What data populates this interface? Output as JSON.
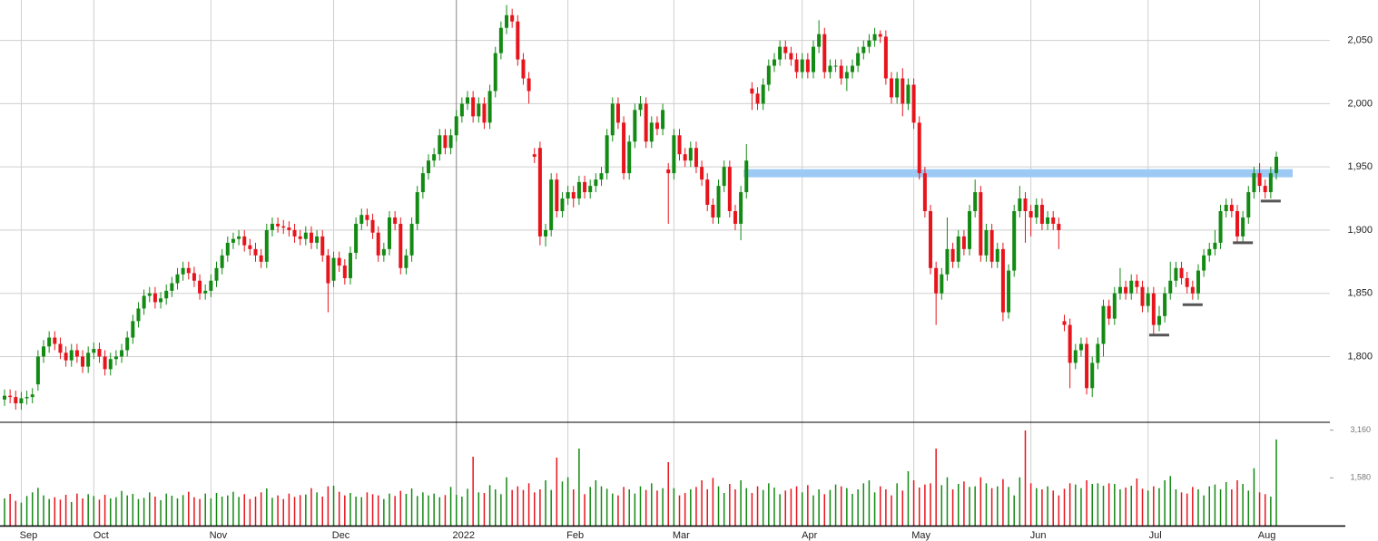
{
  "chart_data": {
    "type": "candlestick",
    "categories": [
      null,
      null,
      null,
      "Sep",
      null,
      null,
      null,
      null,
      null,
      null,
      null,
      null,
      null,
      null,
      null,
      null,
      "Oct",
      null,
      null,
      null,
      null,
      null,
      null,
      null,
      null,
      null,
      null,
      null,
      null,
      null,
      null,
      null,
      null,
      null,
      null,
      null,
      null,
      "Nov",
      null,
      null,
      null,
      null,
      null,
      null,
      null,
      null,
      null,
      null,
      null,
      null,
      null,
      null,
      null,
      null,
      null,
      null,
      null,
      null,
      null,
      "Dec",
      null,
      null,
      null,
      null,
      null,
      null,
      null,
      null,
      null,
      null,
      null,
      null,
      null,
      null,
      null,
      null,
      null,
      null,
      null,
      null,
      null,
      "2022",
      null,
      null,
      null,
      null,
      null,
      null,
      null,
      null,
      null,
      null,
      null,
      null,
      null,
      null,
      null,
      null,
      null,
      null,
      null,
      "Feb",
      null,
      null,
      null,
      null,
      null,
      null,
      null,
      null,
      null,
      null,
      null,
      null,
      null,
      null,
      null,
      null,
      null,
      null,
      "Mar",
      null,
      null,
      null,
      null,
      null,
      null,
      null,
      null,
      null,
      null,
      null,
      null,
      null,
      null,
      null,
      null,
      null,
      null,
      null,
      null,
      null,
      null,
      "Apr",
      null,
      null,
      null,
      null,
      null,
      null,
      null,
      null,
      null,
      null,
      null,
      null,
      null,
      null,
      null,
      null,
      null,
      null,
      null,
      "May",
      null,
      null,
      null,
      null,
      null,
      null,
      null,
      null,
      null,
      null,
      null,
      null,
      null,
      null,
      null,
      null,
      null,
      null,
      null,
      null,
      "Jun",
      null,
      null,
      null,
      null,
      null,
      null,
      null,
      null,
      null,
      null,
      null,
      null,
      null,
      null,
      null,
      null,
      null,
      null,
      null,
      null,
      "Jul",
      null,
      null,
      null,
      null,
      null,
      null,
      null,
      null,
      null,
      null,
      null,
      null,
      null,
      null,
      null,
      null,
      null,
      null,
      null,
      "Aug",
      null,
      null,
      null
    ],
    "open": [
      1766,
      1769,
      1768,
      1763,
      1767,
      1768,
      1778,
      1800,
      1808,
      1815,
      1810,
      1803,
      1797,
      1805,
      1800,
      1792,
      1803,
      1806,
      1800,
      1790,
      1798,
      1800,
      1805,
      1815,
      1828,
      1838,
      1848,
      1850,
      1843,
      1846,
      1852,
      1858,
      1865,
      1870,
      1866,
      1860,
      1850,
      1852,
      1860,
      1870,
      1880,
      1890,
      1893,
      1895,
      1888,
      1885,
      1880,
      1875,
      1900,
      1905,
      1903,
      1902,
      1900,
      1895,
      1893,
      1898,
      1890,
      1895,
      1880,
      1860,
      1878,
      1872,
      1862,
      1882,
      1905,
      1912,
      1908,
      1898,
      1880,
      1885,
      1910,
      1905,
      1870,
      1880,
      1905,
      1930,
      1945,
      1955,
      1960,
      1975,
      1965,
      1975,
      1990,
      2000,
      2005,
      1990,
      2000,
      1985,
      2010,
      2040,
      2060,
      2070,
      2065,
      2035,
      2020,
      1960,
      1965,
      1895,
      1900,
      1940,
      1915,
      1925,
      1930,
      1925,
      1938,
      1930,
      1935,
      1940,
      1945,
      1975,
      2000,
      1985,
      1945,
      1970,
      1995,
      2000,
      1970,
      1985,
      1980,
      1948,
      1945,
      1975,
      1960,
      1955,
      1965,
      1950,
      1940,
      1920,
      1910,
      1935,
      1950,
      1915,
      1905,
      1930,
      2012,
      2008,
      2000,
      2015,
      2030,
      2035,
      2045,
      2040,
      2035,
      2025,
      2035,
      2025,
      2045,
      2055,
      2025,
      2030,
      2030,
      2020,
      2025,
      2030,
      2040,
      2045,
      2050,
      2055,
      2053,
      2020,
      2005,
      2020,
      2000,
      2015,
      1985,
      1945,
      1915,
      1870,
      1850,
      1865,
      1885,
      1875,
      1895,
      1885,
      1915,
      1930,
      1880,
      1900,
      1875,
      1885,
      1835,
      1868,
      1915,
      1925,
      1915,
      1910,
      1920,
      1905,
      1910,
      1905,
      1828,
      1825,
      1795,
      1805,
      1810,
      1775,
      1795,
      1810,
      1840,
      1830,
      1850,
      1855,
      1850,
      1860,
      1855,
      1840,
      1850,
      1825,
      1832,
      1850,
      1860,
      1870,
      1862,
      1855,
      1850,
      1868,
      1880,
      1885,
      1890,
      1915,
      1920,
      1915,
      1895,
      1910,
      1930,
      1945,
      1935,
      1930,
      1945
    ],
    "high": [
      1774,
      1774,
      1773,
      1772,
      1773,
      1775,
      1805,
      1813,
      1820,
      1820,
      1815,
      1808,
      1810,
      1810,
      1805,
      1808,
      1811,
      1811,
      1805,
      1803,
      1805,
      1810,
      1820,
      1833,
      1843,
      1853,
      1855,
      1855,
      1851,
      1857,
      1863,
      1870,
      1875,
      1875,
      1871,
      1865,
      1857,
      1865,
      1875,
      1885,
      1895,
      1898,
      1900,
      1900,
      1893,
      1890,
      1885,
      1905,
      1910,
      1910,
      1908,
      1907,
      1905,
      1900,
      1903,
      1903,
      1900,
      1900,
      1885,
      1883,
      1883,
      1877,
      1887,
      1910,
      1917,
      1917,
      1913,
      1903,
      1890,
      1915,
      1915,
      1910,
      1885,
      1910,
      1935,
      1950,
      1960,
      1965,
      1980,
      1980,
      1980,
      1995,
      2005,
      2010,
      2010,
      2005,
      2005,
      2015,
      2045,
      2065,
      2078,
      2075,
      2070,
      2040,
      2025,
      1965,
      1970,
      1905,
      1945,
      1945,
      1930,
      1935,
      1935,
      1943,
      1943,
      1940,
      1945,
      1950,
      1980,
      2005,
      2005,
      1990,
      1975,
      2000,
      2006,
      2005,
      1990,
      1990,
      2000,
      1953,
      1980,
      1980,
      1965,
      1970,
      1970,
      1955,
      1945,
      1925,
      1940,
      1955,
      1955,
      1920,
      1935,
      1968,
      2017,
      2013,
      2020,
      2035,
      2040,
      2050,
      2050,
      2045,
      2040,
      2040,
      2040,
      2050,
      2066,
      2060,
      2035,
      2035,
      2035,
      2030,
      2035,
      2045,
      2050,
      2055,
      2060,
      2058,
      2058,
      2025,
      2025,
      2028,
      2020,
      2020,
      1990,
      1950,
      1920,
      1875,
      1870,
      1910,
      1890,
      1900,
      1900,
      1920,
      1940,
      1935,
      1905,
      1905,
      1890,
      1890,
      1873,
      1920,
      1935,
      1930,
      1920,
      1925,
      1925,
      1915,
      1915,
      1910,
      1833,
      1830,
      1810,
      1815,
      1815,
      1800,
      1815,
      1845,
      1845,
      1855,
      1870,
      1860,
      1865,
      1865,
      1860,
      1855,
      1855,
      1840,
      1855,
      1875,
      1875,
      1875,
      1867,
      1860,
      1873,
      1885,
      1890,
      1900,
      1920,
      1925,
      1925,
      1920,
      1915,
      1935,
      1950,
      1953,
      1940,
      1950,
      1962
    ],
    "low": [
      1761,
      1763,
      1758,
      1758,
      1762,
      1763,
      1773,
      1795,
      1803,
      1805,
      1798,
      1792,
      1792,
      1795,
      1787,
      1787,
      1798,
      1795,
      1785,
      1785,
      1793,
      1795,
      1800,
      1810,
      1823,
      1833,
      1843,
      1838,
      1838,
      1841,
      1847,
      1853,
      1860,
      1861,
      1855,
      1845,
      1845,
      1847,
      1855,
      1865,
      1875,
      1885,
      1888,
      1883,
      1880,
      1875,
      1870,
      1870,
      1895,
      1898,
      1897,
      1895,
      1890,
      1888,
      1888,
      1885,
      1885,
      1875,
      1835,
      1855,
      1867,
      1857,
      1857,
      1877,
      1900,
      1903,
      1893,
      1875,
      1875,
      1880,
      1900,
      1865,
      1865,
      1875,
      1900,
      1925,
      1940,
      1950,
      1955,
      1960,
      1960,
      1970,
      1985,
      1995,
      1985,
      1985,
      1980,
      1980,
      2005,
      2035,
      2055,
      2060,
      2030,
      2015,
      2000,
      1953,
      1888,
      1887,
      1895,
      1910,
      1910,
      1920,
      1918,
      1920,
      1925,
      1925,
      1930,
      1935,
      1940,
      1970,
      1980,
      1940,
      1940,
      1965,
      1990,
      1965,
      1965,
      1975,
      1975,
      1905,
      1940,
      1955,
      1950,
      1950,
      1945,
      1935,
      1915,
      1905,
      1905,
      1930,
      1910,
      1900,
      1892,
      1925,
      1995,
      1995,
      1995,
      2010,
      2025,
      2030,
      2035,
      2030,
      2020,
      2020,
      2020,
      2020,
      2040,
      2020,
      2020,
      2025,
      2015,
      2010,
      2020,
      2025,
      2035,
      2040,
      2045,
      2048,
      2015,
      2000,
      2000,
      1990,
      1995,
      1980,
      1940,
      1910,
      1865,
      1825,
      1845,
      1860,
      1870,
      1870,
      1880,
      1880,
      1910,
      1875,
      1875,
      1870,
      1870,
      1828,
      1830,
      1863,
      1910,
      1890,
      1895,
      1905,
      1900,
      1900,
      1900,
      1885,
      1820,
      1775,
      1790,
      1800,
      1770,
      1768,
      1790,
      1800,
      1825,
      1825,
      1845,
      1845,
      1845,
      1850,
      1835,
      1835,
      1818,
      1820,
      1827,
      1845,
      1855,
      1857,
      1850,
      1845,
      1845,
      1863,
      1875,
      1880,
      1885,
      1910,
      1910,
      1890,
      1890,
      1905,
      1925,
      1930,
      1925,
      1925,
      1940
    ],
    "close": [
      1769,
      1768,
      1763,
      1767,
      1768,
      1770,
      1800,
      1808,
      1815,
      1810,
      1803,
      1797,
      1805,
      1800,
      1792,
      1803,
      1806,
      1800,
      1790,
      1798,
      1800,
      1805,
      1815,
      1828,
      1838,
      1848,
      1850,
      1843,
      1846,
      1852,
      1858,
      1865,
      1870,
      1866,
      1860,
      1850,
      1852,
      1860,
      1870,
      1880,
      1890,
      1893,
      1895,
      1888,
      1885,
      1880,
      1875,
      1900,
      1905,
      1903,
      1902,
      1900,
      1895,
      1893,
      1898,
      1890,
      1895,
      1880,
      1858,
      1878,
      1872,
      1862,
      1882,
      1905,
      1912,
      1908,
      1898,
      1880,
      1885,
      1910,
      1905,
      1870,
      1880,
      1905,
      1930,
      1945,
      1955,
      1960,
      1975,
      1965,
      1975,
      1990,
      2000,
      2005,
      1990,
      2000,
      1985,
      2010,
      2040,
      2060,
      2070,
      2065,
      2035,
      2020,
      2010,
      1958,
      1895,
      1900,
      1940,
      1915,
      1925,
      1930,
      1925,
      1938,
      1930,
      1935,
      1940,
      1945,
      1975,
      2000,
      1985,
      1945,
      1970,
      1995,
      2000,
      1970,
      1985,
      1980,
      1995,
      1945,
      1975,
      1960,
      1955,
      1965,
      1950,
      1940,
      1920,
      1910,
      1935,
      1950,
      1915,
      1905,
      1930,
      1955,
      2008,
      2000,
      2015,
      2030,
      2035,
      2045,
      2040,
      2035,
      2025,
      2035,
      2025,
      2045,
      2055,
      2025,
      2030,
      2030,
      2020,
      2025,
      2030,
      2040,
      2045,
      2050,
      2055,
      2053,
      2020,
      2005,
      2020,
      2000,
      2015,
      1985,
      1945,
      1915,
      1870,
      1850,
      1865,
      1885,
      1875,
      1895,
      1885,
      1915,
      1930,
      1880,
      1900,
      1875,
      1885,
      1835,
      1868,
      1915,
      1925,
      1915,
      1910,
      1920,
      1905,
      1910,
      1905,
      1900,
      1825,
      1795,
      1805,
      1810,
      1775,
      1795,
      1810,
      1840,
      1830,
      1850,
      1855,
      1850,
      1860,
      1855,
      1840,
      1850,
      1825,
      1832,
      1850,
      1860,
      1870,
      1862,
      1855,
      1850,
      1868,
      1880,
      1885,
      1890,
      1915,
      1920,
      1915,
      1895,
      1910,
      1930,
      1945,
      1935,
      1930,
      1945,
      1958
    ],
    "volume": [
      900,
      1050,
      820,
      760,
      980,
      1100,
      1250,
      1000,
      880,
      940,
      860,
      1020,
      780,
      1060,
      900,
      1040,
      980,
      860,
      1020,
      900,
      940,
      1150,
      1000,
      1050,
      880,
      920,
      1100,
      960,
      840,
      1060,
      990,
      900,
      1010,
      1120,
      940,
      880,
      1060,
      900,
      1080,
      960,
      1000,
      1120,
      950,
      1040,
      880,
      960,
      1100,
      1230,
      920,
      1000,
      880,
      1060,
      950,
      1010,
      1030,
      1240,
      1100,
      960,
      1300,
      1320,
      1120,
      1000,
      1080,
      960,
      940,
      1100,
      1040,
      1000,
      880,
      1060,
      980,
      1150,
      1050,
      1230,
      980,
      1100,
      1000,
      1060,
      940,
      1010,
      1280,
      1020,
      960,
      1220,
      2280,
      1100,
      1080,
      1340,
      1200,
      1040,
      1600,
      1180,
      1300,
      1180,
      1400,
      1100,
      1200,
      1500,
      1180,
      2250,
      1460,
      1600,
      1200,
      2550,
      1040,
      1280,
      1500,
      1300,
      1220,
      1060,
      1000,
      1280,
      1200,
      1060,
      1300,
      1180,
      1400,
      1160,
      1240,
      2100,
      1240,
      1000,
      1080,
      1200,
      1280,
      1500,
      1200,
      1580,
      1300,
      1080,
      1380,
      1200,
      1500,
      1240,
      1080,
      1300,
      1180,
      1400,
      1260,
      1040,
      1160,
      1220,
      1300,
      1100,
      1340,
      1000,
      1200,
      1040,
      1180,
      1360,
      1300,
      1240,
      1050,
      1200,
      1400,
      1500,
      1100,
      1300,
      1200,
      1000,
      1400,
      1160,
      1800,
      1500,
      1260,
      1360,
      1400,
      2550,
      1340,
      1600,
      1200,
      1380,
      1460,
      1280,
      1300,
      1600,
      1400,
      1240,
      1300,
      1540,
      1280,
      1000,
      1600,
      3150,
      1400,
      1240,
      1200,
      1300,
      1160,
      1000,
      1220,
      1400,
      1360,
      1240,
      1500,
      1380,
      1400,
      1320,
      1400,
      1380,
      1200,
      1260,
      1320,
      1560,
      1220,
      1160,
      1300,
      1240,
      1500,
      1640,
      1200,
      1100,
      1060,
      1280,
      1200,
      1000,
      1300,
      1360,
      1200,
      1440,
      1200,
      1500,
      1380,
      1160,
      1900,
      1100,
      1040,
      960,
      2850
    ],
    "up_color": "#138a13",
    "down_color": "#e8141c",
    "ylim": [
      1748,
      2082
    ],
    "yticks": [
      {
        "value": 1800,
        "label": "1,800"
      },
      {
        "value": 1850,
        "label": "1,850"
      },
      {
        "value": 1900,
        "label": "1,900"
      },
      {
        "value": 1950,
        "label": "1,950"
      },
      {
        "value": 2000,
        "label": "2,000"
      },
      {
        "value": 2050,
        "label": "2,050"
      }
    ],
    "y2lim": [
      0,
      3420
    ],
    "y2ticks": [
      {
        "value": 1580,
        "label": "1,580"
      },
      {
        "value": 3160,
        "label": "3,160"
      }
    ],
    "grid": true,
    "band": {
      "value": 1945,
      "start": 133,
      "color": "#9ccaf5"
    },
    "markers": [
      {
        "index": 207,
        "value": 1817
      },
      {
        "index": 213,
        "value": 1841
      },
      {
        "index": 222,
        "value": 1890
      },
      {
        "index": 227,
        "value": 1923
      }
    ]
  }
}
